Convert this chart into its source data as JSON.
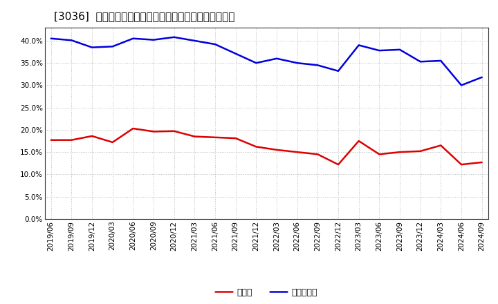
{
  "title": "[3036]  現預金、有利子負債の総資産に対する比率の推移",
  "x_labels": [
    "2019/06",
    "2019/09",
    "2019/12",
    "2020/03",
    "2020/06",
    "2020/09",
    "2020/12",
    "2021/03",
    "2021/06",
    "2021/09",
    "2021/12",
    "2022/03",
    "2022/06",
    "2022/09",
    "2022/12",
    "2023/03",
    "2023/06",
    "2023/09",
    "2023/12",
    "2024/03",
    "2024/06",
    "2024/09"
  ],
  "cash": [
    0.177,
    0.177,
    0.186,
    0.172,
    0.203,
    0.196,
    0.197,
    0.185,
    0.183,
    0.181,
    0.162,
    0.155,
    0.15,
    0.145,
    0.122,
    0.175,
    0.145,
    0.15,
    0.152,
    0.165,
    0.122,
    0.127
  ],
  "debt": [
    0.405,
    0.401,
    0.385,
    0.387,
    0.405,
    0.402,
    0.408,
    0.4,
    0.392,
    0.371,
    0.35,
    0.36,
    0.35,
    0.345,
    0.332,
    0.39,
    0.378,
    0.38,
    0.353,
    0.355,
    0.3,
    0.318
  ],
  "cash_color": "#dd0000",
  "debt_color": "#0000dd",
  "background_color": "#ffffff",
  "plot_bg_color": "#ffffff",
  "grid_color": "#bbbbbb",
  "spine_color": "#333333",
  "legend_cash": "現預金",
  "legend_debt": "有利子負債",
  "ylim": [
    0.0,
    0.43
  ],
  "yticks": [
    0.0,
    0.05,
    0.1,
    0.15,
    0.2,
    0.25,
    0.3,
    0.35,
    0.4
  ],
  "title_fontsize": 11,
  "tick_fontsize": 7.5,
  "legend_fontsize": 9,
  "line_width": 1.8
}
